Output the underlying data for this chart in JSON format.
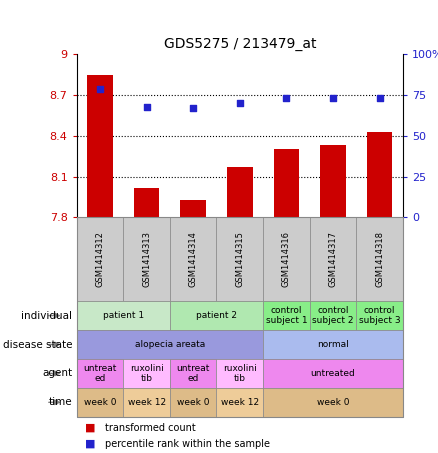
{
  "title": "GDS5275 / 213479_at",
  "samples": [
    "GSM1414312",
    "GSM1414313",
    "GSM1414314",
    "GSM1414315",
    "GSM1414316",
    "GSM1414317",
    "GSM1414318"
  ],
  "transformed_count": [
    8.85,
    8.02,
    7.93,
    8.17,
    8.3,
    8.33,
    8.43
  ],
  "percentile_rank": [
    79,
    68,
    67,
    70,
    73,
    73,
    73
  ],
  "ylim_left": [
    7.8,
    9.0
  ],
  "ylim_right": [
    0,
    100
  ],
  "yticks_left": [
    7.8,
    8.1,
    8.4,
    8.7,
    9.0
  ],
  "yticks_right": [
    0,
    25,
    50,
    75,
    100
  ],
  "ytick_labels_left": [
    "7.8",
    "8.1",
    "8.4",
    "8.7",
    "9"
  ],
  "ytick_labels_right": [
    "0",
    "25",
    "50",
    "75",
    "100%"
  ],
  "bar_color": "#cc0000",
  "dot_color": "#2222cc",
  "bar_bottom": 7.8,
  "rows": {
    "individual": {
      "label": "individual",
      "cells": [
        {
          "text": "patient 1",
          "span": 2,
          "color": "#c8e8c8"
        },
        {
          "text": "patient 2",
          "span": 2,
          "color": "#b0e8b0"
        },
        {
          "text": "control\nsubject 1",
          "span": 1,
          "color": "#88ee88"
        },
        {
          "text": "control\nsubject 2",
          "span": 1,
          "color": "#88ee88"
        },
        {
          "text": "control\nsubject 3",
          "span": 1,
          "color": "#88ee88"
        }
      ]
    },
    "disease_state": {
      "label": "disease state",
      "cells": [
        {
          "text": "alopecia areata",
          "span": 4,
          "color": "#9999dd"
        },
        {
          "text": "normal",
          "span": 3,
          "color": "#aabbee"
        }
      ]
    },
    "agent": {
      "label": "agent",
      "cells": [
        {
          "text": "untreat\ned",
          "span": 1,
          "color": "#ee88ee"
        },
        {
          "text": "ruxolini\ntib",
          "span": 1,
          "color": "#ffbbff"
        },
        {
          "text": "untreat\ned",
          "span": 1,
          "color": "#ee88ee"
        },
        {
          "text": "ruxolini\ntib",
          "span": 1,
          "color": "#ffbbff"
        },
        {
          "text": "untreated",
          "span": 3,
          "color": "#ee88ee"
        }
      ]
    },
    "time": {
      "label": "time",
      "cells": [
        {
          "text": "week 0",
          "span": 1,
          "color": "#ddbb88"
        },
        {
          "text": "week 12",
          "span": 1,
          "color": "#eecc99"
        },
        {
          "text": "week 0",
          "span": 1,
          "color": "#ddbb88"
        },
        {
          "text": "week 12",
          "span": 1,
          "color": "#eecc99"
        },
        {
          "text": "week 0",
          "span": 3,
          "color": "#ddbb88"
        }
      ]
    }
  },
  "row_order": [
    "individual",
    "disease_state",
    "agent",
    "time"
  ],
  "row_labels": [
    "individual",
    "disease state",
    "agent",
    "time"
  ]
}
